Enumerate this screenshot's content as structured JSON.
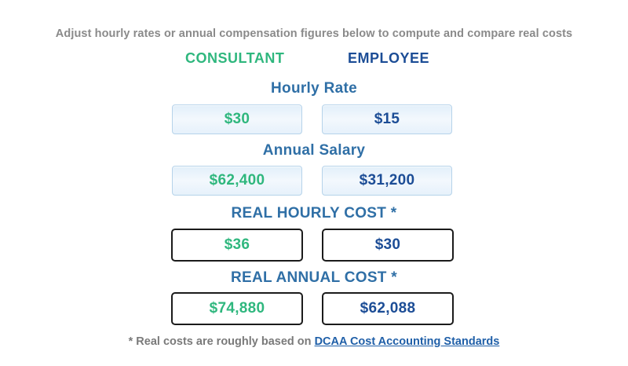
{
  "intro_text": "Adjust hourly rates or annual compensation figures below to compute and compare real costs",
  "columns": {
    "consultant": "CONSULTANT",
    "employee": "EMPLOYEE"
  },
  "sections": {
    "hourly_rate": {
      "label": "Hourly Rate",
      "consultant": "$30",
      "employee": "$15"
    },
    "annual_salary": {
      "label": "Annual Salary",
      "consultant": "$62,400",
      "employee": "$31,200"
    },
    "real_hourly_cost": {
      "label": "REAL HOURLY COST *",
      "consultant": "$36",
      "employee": "$30"
    },
    "real_annual_cost": {
      "label": "REAL ANNUAL COST *",
      "consultant": "$74,880",
      "employee": "$62,088"
    }
  },
  "footnote": {
    "prefix": "* Real costs are roughly based on ",
    "link_text": "DCAA Cost Accounting Standards"
  },
  "colors": {
    "consultant": "#2fb77e",
    "employee": "#1c4d96",
    "section_label": "#2f6fa6",
    "muted_text": "#8a8a8a",
    "link": "#1f5fa8"
  }
}
